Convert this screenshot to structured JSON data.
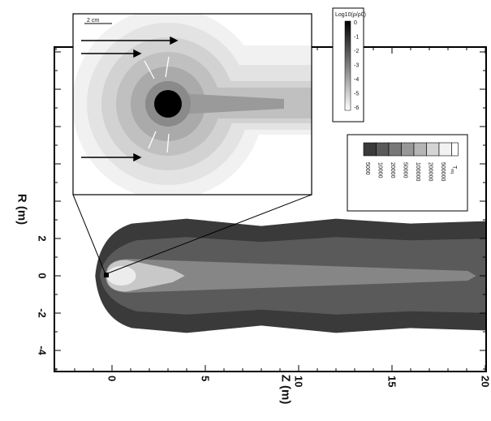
{
  "chart_data": {
    "type": "heatmap",
    "title": "",
    "xlabel": "Z (m)",
    "ylabel": "R (m)",
    "xlim": [
      -3,
      20
    ],
    "ylim": [
      -5,
      12.5
    ],
    "x_ticks": [
      "0",
      "5",
      "10",
      "15",
      "20"
    ],
    "x_tick_values": [
      0,
      5,
      10,
      15,
      20
    ],
    "y_ticks": [
      "-4",
      "-2",
      "0",
      "2"
    ],
    "y_tick_values": [
      -4,
      -2,
      0,
      2
    ],
    "colorbar": {
      "label": "T",
      "label_sub": "eq",
      "values": [
        "5000",
        "10000",
        "20000",
        "50000",
        "100000",
        "200000",
        "500000"
      ],
      "colors": [
        "#3a3a3a",
        "#5a5a5a",
        "#787878",
        "#979797",
        "#b5b5b5",
        "#d4d4d4",
        "#f2f2f2"
      ]
    },
    "contours": [
      {
        "level": "5000",
        "color": "#3a3a3a",
        "z_start": -0.9,
        "z_end": 20,
        "r_max": 2.8
      },
      {
        "level": "10000",
        "color": "#5a5a5a",
        "z_start": -0.65,
        "z_end": 20,
        "r_max": 1.9
      },
      {
        "level": "20000",
        "color": "#868686",
        "z_start": -0.35,
        "z_end": 19.5,
        "r_max": 0.9
      },
      {
        "level": "50000",
        "color": "#c8c8c8",
        "z_start": -0.3,
        "z_end": 3.9,
        "r_max": 0.85
      }
    ],
    "inset": {
      "scale_bar": "2 cm",
      "log_label": "Log10(ρ/ρ0)",
      "colorbar_ticks": [
        "0",
        "-1",
        "-2",
        "-3",
        "-4",
        "-5",
        "-6"
      ]
    },
    "grid": false,
    "legend_position": "right"
  }
}
